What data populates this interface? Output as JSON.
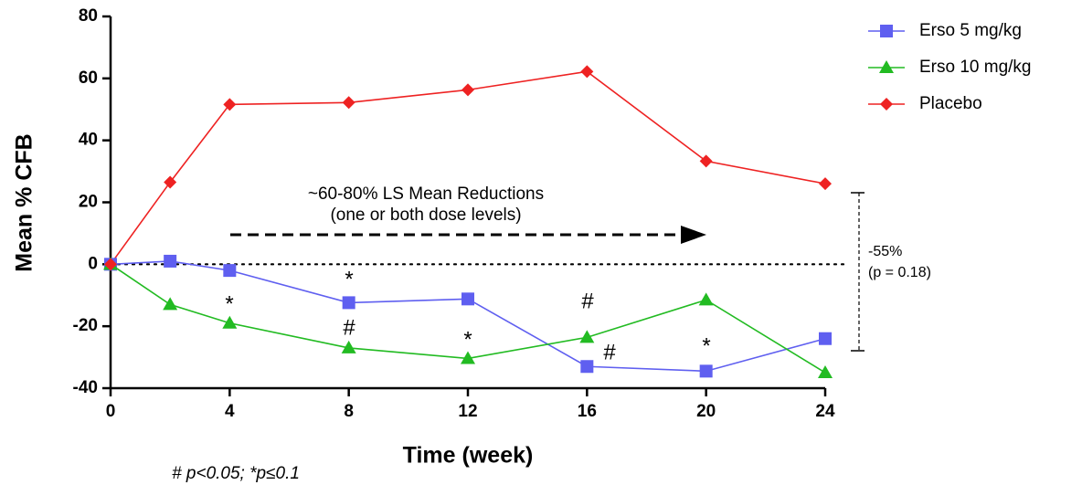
{
  "chart_data": {
    "type": "line",
    "xlabel": "Time (week)",
    "ylabel": "Mean % CFB",
    "x": [
      0,
      2,
      4,
      8,
      12,
      16,
      20,
      24
    ],
    "series": [
      {
        "name": "Erso 5 mg/kg",
        "color": "#5f5ff0",
        "marker": "square",
        "values": [
          0,
          1,
          -2,
          -12.4,
          -11.2,
          -33,
          -34.5,
          -24
        ]
      },
      {
        "name": "Erso 10 mg/kg",
        "color": "#22bb22",
        "marker": "triangle",
        "values": [
          0,
          -13,
          -19,
          -27,
          -30.4,
          -23.6,
          -11.5,
          -35
        ]
      },
      {
        "name": "Placebo",
        "color": "#ee2222",
        "marker": "diamond",
        "values": [
          0,
          26.5,
          51.6,
          52.2,
          56.3,
          62.2,
          33.3,
          26
        ]
      }
    ],
    "xlim": [
      0,
      24
    ],
    "xticks": [
      0,
      4,
      8,
      12,
      16,
      20,
      24
    ],
    "ylim": [
      -40,
      80
    ],
    "yticks": [
      -40,
      -20,
      0,
      20,
      40,
      60,
      80
    ],
    "legend": "top-right",
    "annotations": [
      "~60-80% LS Mean Reductions",
      "(one or both dose levels)",
      "-55%",
      "(p = 0.18)",
      "# p<0.05; *p≤0.1"
    ],
    "significance_marks": [
      "*",
      "*",
      "#",
      "*",
      "#",
      "#",
      "*"
    ]
  }
}
